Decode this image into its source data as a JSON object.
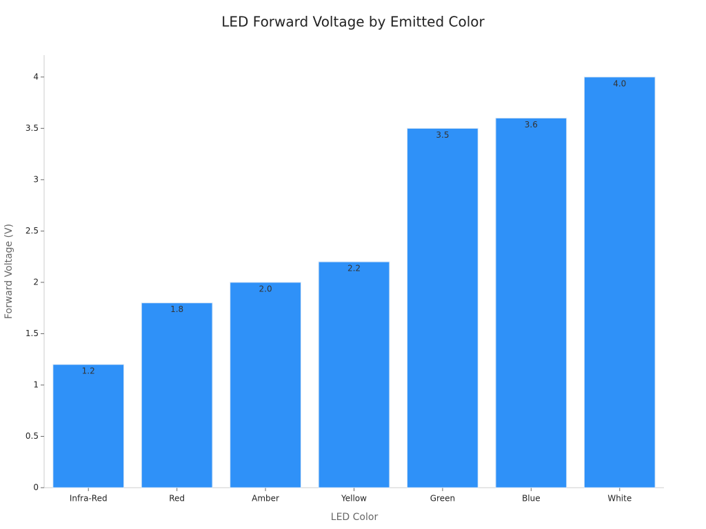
{
  "chart_data": {
    "type": "bar",
    "title": "LED Forward Voltage by Emitted Color",
    "x_label": "LED Color",
    "y_label": "Forward Voltage (V)",
    "categories": [
      "Infra-Red",
      "Red",
      "Amber",
      "Yellow",
      "Green",
      "Blue",
      "White"
    ],
    "values": [
      1.2,
      1.8,
      2.0,
      2.2,
      3.5,
      3.6,
      4.0
    ],
    "value_labels": [
      "1.2",
      "1.8",
      "2.0",
      "2.2",
      "3.5",
      "3.6",
      "4.0"
    ],
    "color": "#2f91f8",
    "ylim": [
      0,
      4.2
    ],
    "yticks": [
      0,
      0.5,
      1,
      1.5,
      2,
      2.5,
      3,
      3.5,
      4
    ],
    "grid": false
  }
}
